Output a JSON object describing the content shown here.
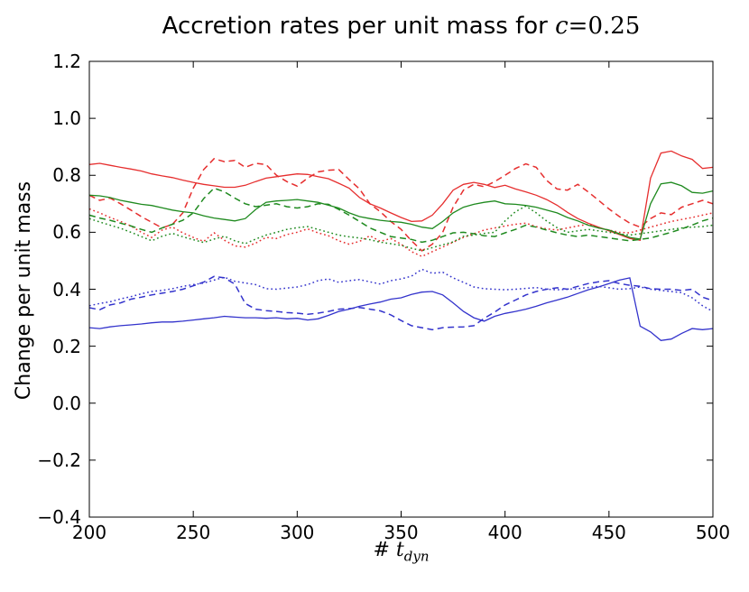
{
  "title": {
    "prefix": "Accretion rates per unit mass for ",
    "var": "c",
    "rest": "=0.25"
  },
  "axes": {
    "ylabel": "Change per unit mass",
    "xlabel_prefix": "# ",
    "xlabel_var": "t",
    "xlabel_sub": "dyn",
    "x_tick_labels": [
      "200",
      "250",
      "300",
      "350",
      "400",
      "450",
      "500"
    ],
    "y_tick_labels": [
      "1.2",
      "1.0",
      "0.8",
      "0.6",
      "0.4",
      "0.2",
      "0.0",
      "−0.2",
      "−0.4"
    ]
  },
  "colors": {
    "background": "#ffffff",
    "axis": "#000000",
    "red": "#e62e2e",
    "green": "#1f8a1f",
    "blue": "#3333cc"
  },
  "chart_data": {
    "type": "line",
    "title": "Accretion rates per unit mass for c=0.25",
    "xlabel": "# t_dyn",
    "ylabel": "Change per unit mass",
    "xlim": [
      200,
      500
    ],
    "ylim": [
      -0.4,
      1.2
    ],
    "x_ticks": [
      200,
      250,
      300,
      350,
      400,
      450,
      500
    ],
    "y_ticks": [
      1.2,
      1.0,
      0.8,
      0.6,
      0.4,
      0.2,
      0.0,
      -0.2,
      -0.4
    ],
    "grid": false,
    "legend": "none",
    "x_start": 200,
    "x_step": 5,
    "series": [
      {
        "name": "red-solid",
        "color": "#e62e2e",
        "style": "solid",
        "values": [
          0.838,
          0.842,
          0.835,
          0.828,
          0.822,
          0.815,
          0.805,
          0.798,
          0.792,
          0.783,
          0.775,
          0.768,
          0.763,
          0.758,
          0.758,
          0.765,
          0.778,
          0.79,
          0.795,
          0.8,
          0.805,
          0.803,
          0.795,
          0.788,
          0.772,
          0.755,
          0.722,
          0.7,
          0.685,
          0.668,
          0.652,
          0.638,
          0.64,
          0.66,
          0.7,
          0.748,
          0.768,
          0.775,
          0.768,
          0.757,
          0.765,
          0.752,
          0.742,
          0.73,
          0.715,
          0.695,
          0.67,
          0.648,
          0.632,
          0.618,
          0.605,
          0.592,
          0.578,
          0.572,
          0.79,
          0.878,
          0.885,
          0.868,
          0.856,
          0.824,
          0.828
        ]
      },
      {
        "name": "red-dashed",
        "color": "#e62e2e",
        "style": "dashed",
        "values": [
          0.73,
          0.712,
          0.72,
          0.7,
          0.678,
          0.655,
          0.635,
          0.615,
          0.628,
          0.668,
          0.755,
          0.82,
          0.858,
          0.848,
          0.852,
          0.828,
          0.842,
          0.838,
          0.8,
          0.778,
          0.762,
          0.79,
          0.812,
          0.818,
          0.82,
          0.785,
          0.752,
          0.7,
          0.672,
          0.638,
          0.61,
          0.57,
          0.535,
          0.558,
          0.6,
          0.688,
          0.748,
          0.768,
          0.76,
          0.778,
          0.8,
          0.824,
          0.84,
          0.828,
          0.782,
          0.752,
          0.748,
          0.768,
          0.742,
          0.712,
          0.682,
          0.655,
          0.632,
          0.618,
          0.648,
          0.668,
          0.662,
          0.688,
          0.7,
          0.712,
          0.7
        ]
      },
      {
        "name": "red-dotted",
        "color": "#e62e2e",
        "style": "dotted",
        "values": [
          0.682,
          0.668,
          0.652,
          0.638,
          0.622,
          0.6,
          0.582,
          0.608,
          0.618,
          0.598,
          0.582,
          0.568,
          0.598,
          0.572,
          0.552,
          0.548,
          0.562,
          0.582,
          0.578,
          0.592,
          0.6,
          0.612,
          0.598,
          0.588,
          0.57,
          0.558,
          0.568,
          0.588,
          0.568,
          0.578,
          0.558,
          0.532,
          0.515,
          0.532,
          0.548,
          0.565,
          0.582,
          0.595,
          0.608,
          0.615,
          0.622,
          0.628,
          0.632,
          0.62,
          0.612,
          0.608,
          0.615,
          0.622,
          0.628,
          0.615,
          0.608,
          0.6,
          0.598,
          0.608,
          0.618,
          0.628,
          0.638,
          0.645,
          0.652,
          0.66,
          0.668
        ]
      },
      {
        "name": "green-solid",
        "color": "#1f8a1f",
        "style": "solid",
        "values": [
          0.73,
          0.728,
          0.722,
          0.712,
          0.705,
          0.698,
          0.694,
          0.686,
          0.678,
          0.672,
          0.668,
          0.658,
          0.65,
          0.645,
          0.64,
          0.648,
          0.68,
          0.705,
          0.71,
          0.712,
          0.715,
          0.71,
          0.705,
          0.695,
          0.685,
          0.668,
          0.655,
          0.648,
          0.642,
          0.638,
          0.635,
          0.628,
          0.618,
          0.613,
          0.638,
          0.668,
          0.688,
          0.698,
          0.705,
          0.71,
          0.7,
          0.698,
          0.694,
          0.688,
          0.678,
          0.668,
          0.652,
          0.64,
          0.625,
          0.615,
          0.608,
          0.595,
          0.582,
          0.576,
          0.7,
          0.77,
          0.775,
          0.763,
          0.74,
          0.737,
          0.745
        ]
      },
      {
        "name": "green-dashed",
        "color": "#1f8a1f",
        "style": "dashed",
        "values": [
          0.66,
          0.65,
          0.642,
          0.632,
          0.622,
          0.61,
          0.6,
          0.615,
          0.628,
          0.642,
          0.668,
          0.718,
          0.755,
          0.742,
          0.72,
          0.7,
          0.69,
          0.695,
          0.7,
          0.69,
          0.685,
          0.69,
          0.7,
          0.698,
          0.68,
          0.66,
          0.638,
          0.615,
          0.6,
          0.585,
          0.58,
          0.575,
          0.565,
          0.572,
          0.585,
          0.598,
          0.6,
          0.595,
          0.588,
          0.585,
          0.598,
          0.61,
          0.625,
          0.618,
          0.608,
          0.598,
          0.59,
          0.585,
          0.59,
          0.585,
          0.58,
          0.575,
          0.57,
          0.575,
          0.58,
          0.59,
          0.6,
          0.612,
          0.625,
          0.64,
          0.65
        ]
      },
      {
        "name": "green-dotted",
        "color": "#1f8a1f",
        "style": "dotted",
        "values": [
          0.648,
          0.636,
          0.625,
          0.614,
          0.6,
          0.585,
          0.57,
          0.586,
          0.596,
          0.584,
          0.574,
          0.564,
          0.576,
          0.586,
          0.57,
          0.56,
          0.576,
          0.59,
          0.6,
          0.61,
          0.616,
          0.62,
          0.61,
          0.6,
          0.59,
          0.584,
          0.58,
          0.574,
          0.565,
          0.56,
          0.554,
          0.544,
          0.535,
          0.546,
          0.556,
          0.566,
          0.586,
          0.59,
          0.596,
          0.6,
          0.64,
          0.672,
          0.692,
          0.668,
          0.64,
          0.616,
          0.6,
          0.605,
          0.61,
          0.605,
          0.6,
          0.594,
          0.59,
          0.595,
          0.6,
          0.605,
          0.61,
          0.615,
          0.618,
          0.62,
          0.625
        ]
      },
      {
        "name": "blue-solid",
        "color": "#3333cc",
        "style": "solid",
        "values": [
          0.265,
          0.262,
          0.268,
          0.272,
          0.275,
          0.278,
          0.282,
          0.285,
          0.285,
          0.288,
          0.292,
          0.296,
          0.3,
          0.305,
          0.302,
          0.3,
          0.3,
          0.298,
          0.3,
          0.296,
          0.298,
          0.292,
          0.296,
          0.308,
          0.322,
          0.33,
          0.34,
          0.348,
          0.355,
          0.365,
          0.37,
          0.382,
          0.39,
          0.392,
          0.38,
          0.352,
          0.322,
          0.3,
          0.288,
          0.305,
          0.315,
          0.322,
          0.33,
          0.34,
          0.352,
          0.362,
          0.372,
          0.385,
          0.398,
          0.408,
          0.42,
          0.432,
          0.44,
          0.27,
          0.25,
          0.22,
          0.225,
          0.245,
          0.262,
          0.258,
          0.262
        ]
      },
      {
        "name": "blue-dashed",
        "color": "#3333cc",
        "style": "dashed",
        "values": [
          0.335,
          0.328,
          0.345,
          0.352,
          0.365,
          0.372,
          0.38,
          0.386,
          0.392,
          0.4,
          0.412,
          0.425,
          0.445,
          0.44,
          0.418,
          0.35,
          0.33,
          0.325,
          0.322,
          0.318,
          0.316,
          0.312,
          0.316,
          0.322,
          0.33,
          0.332,
          0.336,
          0.33,
          0.324,
          0.31,
          0.29,
          0.272,
          0.265,
          0.258,
          0.265,
          0.267,
          0.268,
          0.272,
          0.298,
          0.32,
          0.345,
          0.362,
          0.38,
          0.392,
          0.4,
          0.405,
          0.4,
          0.41,
          0.42,
          0.426,
          0.43,
          0.42,
          0.414,
          0.41,
          0.402,
          0.4,
          0.4,
          0.396,
          0.4,
          0.372,
          0.36
        ]
      },
      {
        "name": "blue-dotted",
        "color": "#3333cc",
        "style": "dotted",
        "values": [
          0.342,
          0.35,
          0.356,
          0.366,
          0.374,
          0.384,
          0.392,
          0.396,
          0.402,
          0.41,
          0.416,
          0.422,
          0.432,
          0.442,
          0.428,
          0.422,
          0.416,
          0.402,
          0.4,
          0.404,
          0.408,
          0.416,
          0.43,
          0.436,
          0.424,
          0.43,
          0.434,
          0.426,
          0.418,
          0.43,
          0.436,
          0.446,
          0.47,
          0.456,
          0.46,
          0.44,
          0.424,
          0.408,
          0.402,
          0.4,
          0.398,
          0.4,
          0.403,
          0.406,
          0.4,
          0.398,
          0.4,
          0.402,
          0.406,
          0.41,
          0.405,
          0.4,
          0.402,
          0.408,
          0.4,
          0.396,
          0.392,
          0.388,
          0.37,
          0.342,
          0.322
        ]
      }
    ]
  }
}
